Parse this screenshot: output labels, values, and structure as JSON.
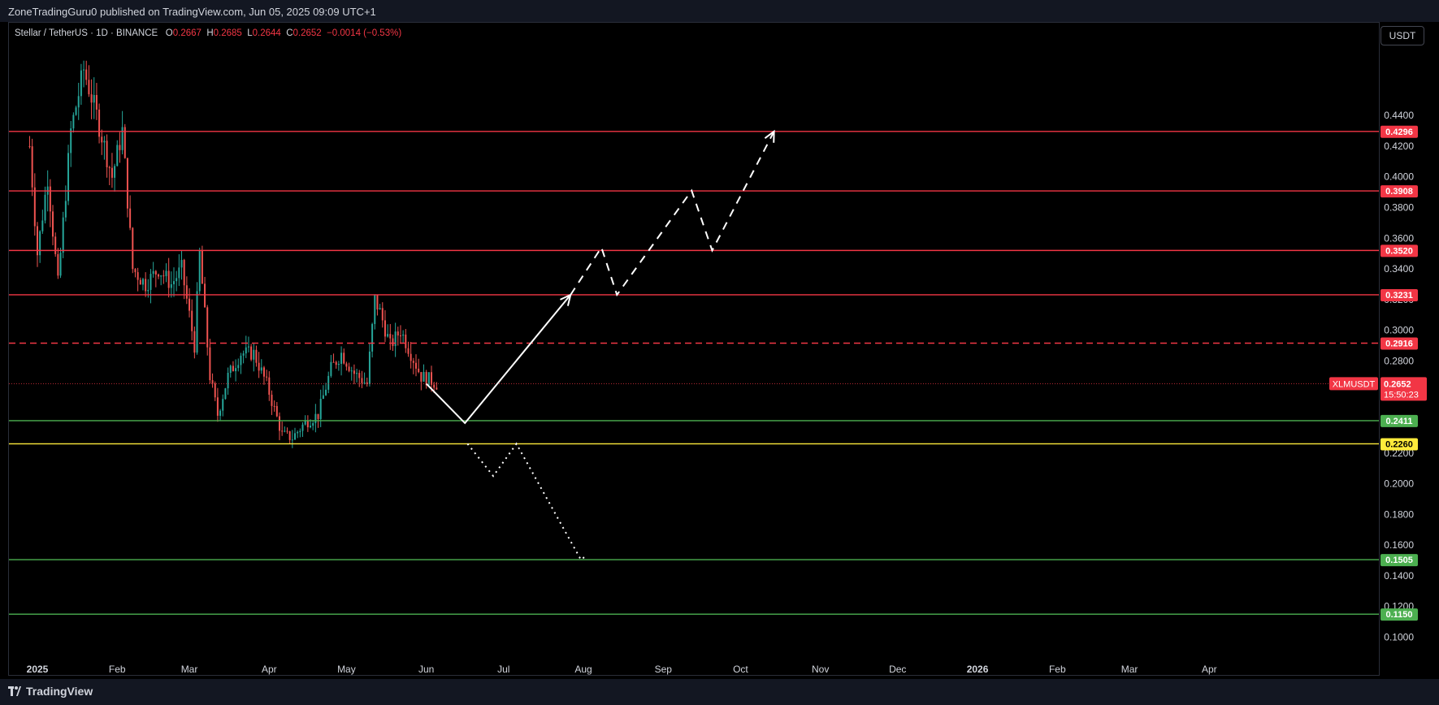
{
  "header": {
    "published_line": "ZoneTradingGuru0 published on TradingView.com, Jun 05, 2025 09:09 UTC+1"
  },
  "legend": {
    "symbol": "Stellar / TetherUS · 1D · BINANCE",
    "o_label": "O",
    "o_value": "0.2667",
    "h_label": "H",
    "h_value": "0.2685",
    "l_label": "L",
    "l_value": "0.2644",
    "c_label": "C",
    "c_value": "0.2652",
    "change": "−0.0014 (−0.53%)"
  },
  "unit_button": "USDT",
  "footer": {
    "brand": "TradingView"
  },
  "colors": {
    "red": "#f23645",
    "green": "#4caf50",
    "yellow": "#ffeb3b",
    "up": "#26a69a",
    "down": "#ef5350",
    "background": "#000000"
  },
  "chart_data": {
    "type": "candlestick",
    "symbol": "XLMUSDT",
    "y_ticks": [
      0.44,
      0.42,
      0.4,
      0.38,
      0.36,
      0.34,
      0.32,
      0.3,
      0.28,
      0.22,
      0.2,
      0.18,
      0.16,
      0.14,
      0.12,
      0.1
    ],
    "ylim": [
      0.0955,
      0.466
    ],
    "x_ticks": [
      "2025",
      "Feb",
      "Mar",
      "Apr",
      "May",
      "Jun",
      "Jul",
      "Aug",
      "Sep",
      "Oct",
      "Nov",
      "Dec",
      "2026",
      "Feb",
      "Mar",
      "Apr"
    ],
    "x_tick_dates": [
      "2025-01-01",
      "2025-02-01",
      "2025-03-01",
      "2025-04-01",
      "2025-05-01",
      "2025-06-01",
      "2025-07-01",
      "2025-08-01",
      "2025-09-01",
      "2025-10-01",
      "2025-11-01",
      "2025-12-01",
      "2026-01-01",
      "2026-02-01",
      "2026-03-01",
      "2026-04-01"
    ],
    "levels": [
      {
        "value": 0.4296,
        "label": "0.4296",
        "color": "#f23645",
        "style": "solid"
      },
      {
        "value": 0.3908,
        "label": "0.3908",
        "color": "#f23645",
        "style": "solid"
      },
      {
        "value": 0.352,
        "label": "0.3520",
        "color": "#f23645",
        "style": "solid"
      },
      {
        "value": 0.3231,
        "label": "0.3231",
        "color": "#f23645",
        "style": "solid"
      },
      {
        "value": 0.2916,
        "label": "0.2916",
        "color": "#f23645",
        "style": "dashed"
      },
      {
        "value": 0.2411,
        "label": "0.2411",
        "color": "#4caf50",
        "style": "solid"
      },
      {
        "value": 0.226,
        "label": "0.2260",
        "color": "#ffeb3b",
        "style": "solid"
      },
      {
        "value": 0.1505,
        "label": "0.1505",
        "color": "#4caf50",
        "style": "solid"
      },
      {
        "value": 0.115,
        "label": "0.1150",
        "color": "#4caf50",
        "style": "solid"
      }
    ],
    "current_price": {
      "value": 0.2652,
      "label": "0.2652",
      "symbol_label": "XLMUSDT",
      "countdown": "15:50:23"
    },
    "price_path_anchors": [
      [
        "2024-12-29",
        0.42
      ],
      [
        "2025-01-01",
        0.35
      ],
      [
        "2025-01-05",
        0.4
      ],
      [
        "2025-01-09",
        0.33
      ],
      [
        "2025-01-14",
        0.43
      ],
      [
        "2025-01-19",
        0.47
      ],
      [
        "2025-01-24",
        0.44
      ],
      [
        "2025-01-30",
        0.4
      ],
      [
        "2025-02-03",
        0.43
      ],
      [
        "2025-02-07",
        0.34
      ],
      [
        "2025-02-12",
        0.33
      ],
      [
        "2025-02-17",
        0.34
      ],
      [
        "2025-02-22",
        0.33
      ],
      [
        "2025-02-26",
        0.34
      ],
      [
        "2025-03-03",
        0.29
      ],
      [
        "2025-03-05",
        0.35
      ],
      [
        "2025-03-09",
        0.27
      ],
      [
        "2025-03-12",
        0.245
      ],
      [
        "2025-03-16",
        0.27
      ],
      [
        "2025-03-21",
        0.285
      ],
      [
        "2025-03-26",
        0.285
      ],
      [
        "2025-03-31",
        0.265
      ],
      [
        "2025-04-06",
        0.232
      ],
      [
        "2025-04-10",
        0.23
      ],
      [
        "2025-04-15",
        0.24
      ],
      [
        "2025-04-20",
        0.245
      ],
      [
        "2025-04-25",
        0.275
      ],
      [
        "2025-04-29",
        0.285
      ],
      [
        "2025-05-04",
        0.272
      ],
      [
        "2025-05-09",
        0.265
      ],
      [
        "2025-05-12",
        0.32
      ],
      [
        "2025-05-14",
        0.312
      ],
      [
        "2025-05-18",
        0.29
      ],
      [
        "2025-05-22",
        0.3
      ],
      [
        "2025-05-26",
        0.285
      ],
      [
        "2025-05-30",
        0.27
      ],
      [
        "2025-06-02",
        0.268
      ],
      [
        "2025-06-05",
        0.2652
      ]
    ],
    "projected_path": {
      "solid": [
        [
          "2025-06-01",
          0.2652
        ],
        [
          "2025-06-16",
          0.2395
        ],
        [
          "2025-07-27",
          0.3231
        ]
      ],
      "dashed": [
        [
          "2025-07-27",
          0.3231
        ],
        [
          "2025-08-08",
          0.354
        ],
        [
          "2025-08-14",
          0.3231
        ],
        [
          "2025-09-12",
          0.391
        ],
        [
          "2025-09-20",
          0.352
        ],
        [
          "2025-10-14",
          0.4296
        ]
      ],
      "dotted": [
        [
          "2025-06-17",
          0.226
        ],
        [
          "2025-06-27",
          0.205
        ],
        [
          "2025-07-06",
          0.226
        ],
        [
          "2025-07-31",
          0.1505
        ],
        [
          "2025-08-02",
          0.153
        ]
      ]
    }
  }
}
